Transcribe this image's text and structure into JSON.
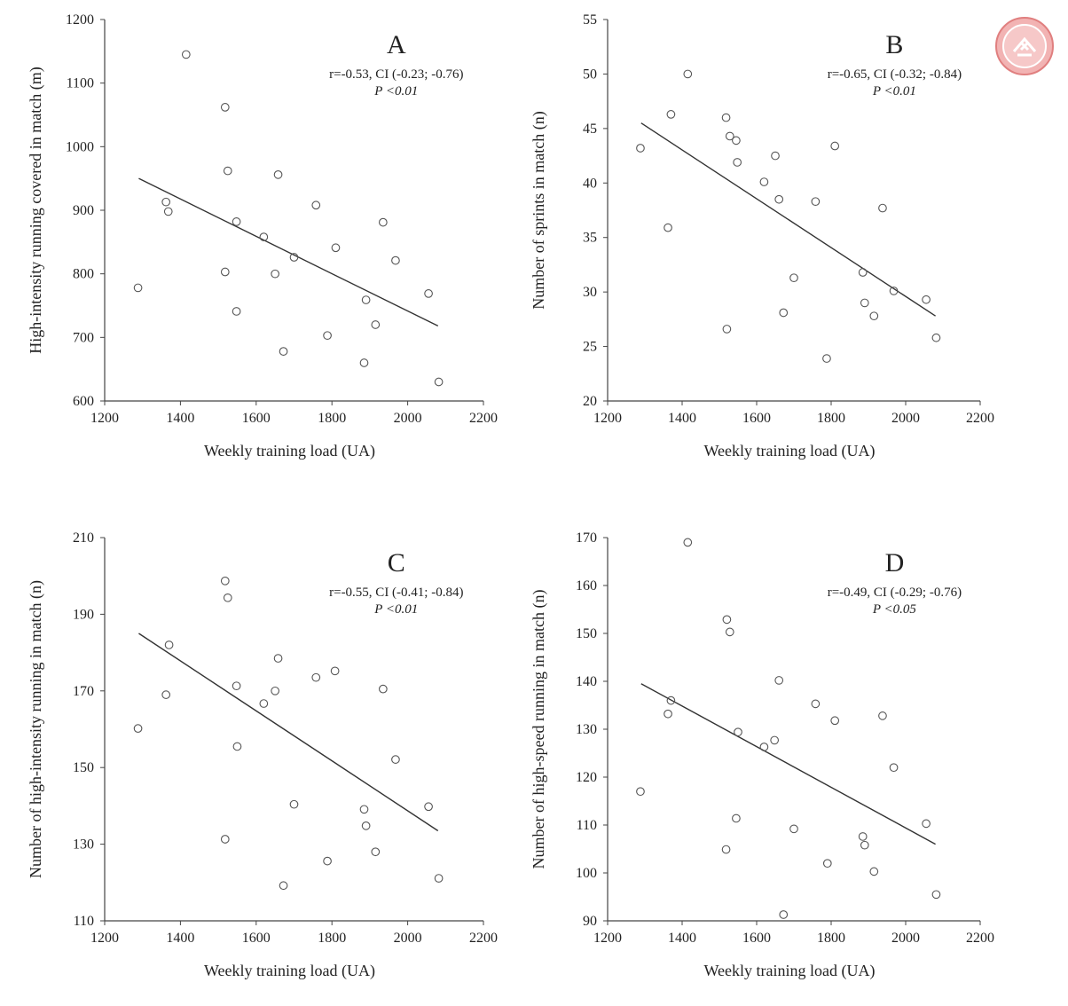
{
  "chart_data": [
    {
      "type": "scatter",
      "panel": "A",
      "xlabel": "Weekly training  load (UA)",
      "ylabel": "High-intensity  running covered in match (m)",
      "xlim": [
        1200,
        2200
      ],
      "ylim": [
        600,
        1200
      ],
      "xticks": [
        1200,
        1400,
        1600,
        1800,
        2000,
        2200
      ],
      "yticks": [
        600,
        700,
        800,
        900,
        1000,
        1100,
        1200
      ],
      "stat_line1": "r=-0.53, CI (-0.23; -0.76)",
      "stat_line2": "P <0.01",
      "trend": {
        "x": [
          1290,
          2080
        ],
        "y": [
          950,
          718
        ]
      },
      "points": [
        {
          "x": 1288,
          "y": 778
        },
        {
          "x": 1362,
          "y": 913
        },
        {
          "x": 1368,
          "y": 898
        },
        {
          "x": 1415,
          "y": 1145
        },
        {
          "x": 1518,
          "y": 1062
        },
        {
          "x": 1518,
          "y": 803
        },
        {
          "x": 1525,
          "y": 962
        },
        {
          "x": 1548,
          "y": 882
        },
        {
          "x": 1548,
          "y": 741
        },
        {
          "x": 1620,
          "y": 858
        },
        {
          "x": 1650,
          "y": 800
        },
        {
          "x": 1658,
          "y": 956
        },
        {
          "x": 1672,
          "y": 678
        },
        {
          "x": 1700,
          "y": 826
        },
        {
          "x": 1758,
          "y": 908
        },
        {
          "x": 1788,
          "y": 703
        },
        {
          "x": 1810,
          "y": 841
        },
        {
          "x": 1885,
          "y": 660
        },
        {
          "x": 1890,
          "y": 759
        },
        {
          "x": 1915,
          "y": 720
        },
        {
          "x": 1935,
          "y": 881
        },
        {
          "x": 1968,
          "y": 821
        },
        {
          "x": 2055,
          "y": 769
        },
        {
          "x": 2082,
          "y": 630
        }
      ]
    },
    {
      "type": "scatter",
      "panel": "B",
      "xlabel": "Weekly training  load (UA)",
      "ylabel": "Number of sprints in match (n)",
      "xlim": [
        1200,
        2200
      ],
      "ylim": [
        20,
        55
      ],
      "xticks": [
        1200,
        1400,
        1600,
        1800,
        2000,
        2200
      ],
      "yticks": [
        20,
        25,
        30,
        35,
        40,
        45,
        50,
        55
      ],
      "stat_line1": "r=-0.65, CI (-0.32; -0.84)",
      "stat_line2": "P <0.01",
      "trend": {
        "x": [
          1290,
          2080
        ],
        "y": [
          45.5,
          27.8
        ]
      },
      "points": [
        {
          "x": 1288,
          "y": 43.2
        },
        {
          "x": 1362,
          "y": 35.9
        },
        {
          "x": 1370,
          "y": 46.3
        },
        {
          "x": 1415,
          "y": 50.0
        },
        {
          "x": 1518,
          "y": 46.0
        },
        {
          "x": 1520,
          "y": 26.6
        },
        {
          "x": 1528,
          "y": 44.3
        },
        {
          "x": 1545,
          "y": 43.9
        },
        {
          "x": 1548,
          "y": 41.9
        },
        {
          "x": 1620,
          "y": 40.1
        },
        {
          "x": 1650,
          "y": 42.5
        },
        {
          "x": 1660,
          "y": 38.5
        },
        {
          "x": 1672,
          "y": 28.1
        },
        {
          "x": 1700,
          "y": 31.3
        },
        {
          "x": 1758,
          "y": 38.3
        },
        {
          "x": 1788,
          "y": 23.9
        },
        {
          "x": 1810,
          "y": 43.4
        },
        {
          "x": 1885,
          "y": 31.8
        },
        {
          "x": 1890,
          "y": 29.0
        },
        {
          "x": 1915,
          "y": 27.8
        },
        {
          "x": 1938,
          "y": 37.7
        },
        {
          "x": 1968,
          "y": 30.1
        },
        {
          "x": 2055,
          "y": 29.3
        },
        {
          "x": 2082,
          "y": 25.8
        }
      ]
    },
    {
      "type": "scatter",
      "panel": "C",
      "xlabel": "Weekly training  load (UA)",
      "ylabel": "Number of high-intensity  running in match (n)",
      "xlim": [
        1200,
        2200
      ],
      "ylim": [
        110,
        210
      ],
      "xticks": [
        1200,
        1400,
        1600,
        1800,
        2000,
        2200
      ],
      "yticks": [
        110,
        130,
        150,
        170,
        190,
        210
      ],
      "stat_line1": "r=-0.55, CI (-0.41; -0.84)",
      "stat_line2": "P <0.01",
      "trend": {
        "x": [
          1290,
          2080
        ],
        "y": [
          185,
          133.5
        ]
      },
      "points": [
        {
          "x": 1288,
          "y": 160.2
        },
        {
          "x": 1362,
          "y": 169.0
        },
        {
          "x": 1370,
          "y": 182.0
        },
        {
          "x": 1518,
          "y": 198.7
        },
        {
          "x": 1518,
          "y": 131.3
        },
        {
          "x": 1525,
          "y": 194.3
        },
        {
          "x": 1548,
          "y": 171.3
        },
        {
          "x": 1550,
          "y": 155.5
        },
        {
          "x": 1620,
          "y": 166.7
        },
        {
          "x": 1650,
          "y": 170.0
        },
        {
          "x": 1658,
          "y": 178.5
        },
        {
          "x": 1672,
          "y": 119.2
        },
        {
          "x": 1700,
          "y": 140.4
        },
        {
          "x": 1758,
          "y": 173.5
        },
        {
          "x": 1788,
          "y": 125.6
        },
        {
          "x": 1808,
          "y": 175.2
        },
        {
          "x": 1885,
          "y": 139.1
        },
        {
          "x": 1890,
          "y": 134.8
        },
        {
          "x": 1915,
          "y": 128.0
        },
        {
          "x": 1935,
          "y": 170.5
        },
        {
          "x": 1968,
          "y": 152.1
        },
        {
          "x": 2055,
          "y": 139.8
        },
        {
          "x": 2082,
          "y": 121.1
        }
      ]
    },
    {
      "type": "scatter",
      "panel": "D",
      "xlabel": "Weekly training  load (UA)",
      "ylabel": "Number of high-speed running in match (n)",
      "xlim": [
        1200,
        2200
      ],
      "ylim": [
        90,
        170
      ],
      "xticks": [
        1200,
        1400,
        1600,
        1800,
        2000,
        2200
      ],
      "yticks": [
        90,
        100,
        110,
        120,
        130,
        140,
        150,
        160,
        170
      ],
      "stat_line1": "r=-0.49, CI (-0.29; -0.76)",
      "stat_line2": "P <0.05",
      "trend": {
        "x": [
          1290,
          2080
        ],
        "y": [
          139.5,
          106
        ]
      },
      "points": [
        {
          "x": 1288,
          "y": 117.0
        },
        {
          "x": 1362,
          "y": 133.2
        },
        {
          "x": 1370,
          "y": 136.0
        },
        {
          "x": 1415,
          "y": 169.0
        },
        {
          "x": 1518,
          "y": 104.9
        },
        {
          "x": 1520,
          "y": 152.9
        },
        {
          "x": 1528,
          "y": 150.3
        },
        {
          "x": 1545,
          "y": 111.4
        },
        {
          "x": 1550,
          "y": 129.4
        },
        {
          "x": 1620,
          "y": 126.3
        },
        {
          "x": 1648,
          "y": 127.7
        },
        {
          "x": 1660,
          "y": 140.2
        },
        {
          "x": 1672,
          "y": 91.3
        },
        {
          "x": 1700,
          "y": 109.2
        },
        {
          "x": 1758,
          "y": 135.3
        },
        {
          "x": 1790,
          "y": 102.0
        },
        {
          "x": 1810,
          "y": 131.8
        },
        {
          "x": 1885,
          "y": 107.6
        },
        {
          "x": 1890,
          "y": 105.8
        },
        {
          "x": 1915,
          "y": 100.3
        },
        {
          "x": 1938,
          "y": 132.8
        },
        {
          "x": 1968,
          "y": 122.0
        },
        {
          "x": 2055,
          "y": 110.3
        },
        {
          "x": 2082,
          "y": 95.5
        }
      ]
    }
  ],
  "logo": {
    "name": "university-seal-icon",
    "color": "#e88a8a"
  }
}
